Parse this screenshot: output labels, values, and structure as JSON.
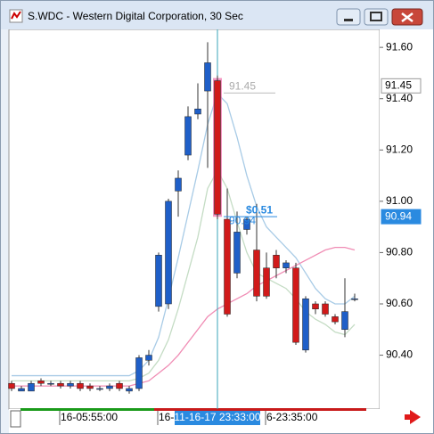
{
  "window": {
    "title": "S.WDC - Western Digital Corporation, 30 Sec"
  },
  "chart_data": {
    "type": "candlestick",
    "categories": [
      null,
      null,
      null,
      null,
      null,
      "16-05:55:00",
      null,
      null,
      null,
      null,
      null,
      null,
      null,
      null,
      null,
      "16-",
      null,
      null,
      null,
      null,
      null,
      "11-16-17 23:33:00",
      null,
      null,
      null,
      null,
      "6-23:35:00",
      null,
      null,
      null,
      null,
      null,
      null,
      null,
      null,
      null
    ],
    "selected_index": 21,
    "open": [
      90.29,
      90.26,
      90.26,
      90.3,
      90.29,
      90.29,
      90.28,
      90.29,
      90.28,
      90.27,
      90.27,
      90.29,
      90.26,
      90.27,
      90.38,
      90.59,
      90.6,
      91.04,
      91.18,
      91.34,
      91.43,
      91.47,
      90.93,
      90.72,
      90.89,
      90.81,
      90.74,
      90.79,
      90.74,
      90.74,
      90.42,
      90.6,
      90.6,
      90.55,
      90.5,
      90.62
    ],
    "high": [
      90.3,
      90.28,
      90.3,
      90.31,
      90.3,
      90.3,
      90.3,
      90.3,
      90.29,
      90.28,
      90.29,
      90.3,
      90.28,
      90.4,
      90.42,
      90.8,
      91.01,
      91.12,
      91.37,
      91.46,
      91.62,
      91.49,
      91.05,
      90.96,
      90.94,
      90.99,
      90.8,
      90.81,
      90.77,
      90.76,
      90.63,
      90.61,
      90.61,
      90.56,
      90.7,
      90.64
    ],
    "low": [
      90.26,
      90.26,
      90.26,
      90.28,
      90.28,
      90.27,
      90.27,
      90.26,
      90.26,
      90.26,
      90.26,
      90.26,
      90.25,
      90.26,
      90.36,
      90.57,
      90.58,
      90.94,
      91.16,
      91.32,
      91.13,
      90.93,
      90.55,
      90.7,
      90.87,
      90.61,
      90.62,
      90.7,
      90.72,
      90.44,
      90.41,
      90.56,
      90.55,
      90.52,
      90.47,
      90.61
    ],
    "close": [
      90.27,
      90.27,
      90.29,
      90.29,
      90.29,
      90.28,
      90.29,
      90.27,
      90.27,
      90.27,
      90.28,
      90.27,
      90.27,
      90.39,
      90.4,
      90.79,
      91.0,
      91.09,
      91.33,
      91.36,
      91.54,
      90.95,
      90.56,
      90.88,
      90.93,
      90.63,
      90.63,
      90.74,
      90.76,
      90.45,
      90.62,
      90.58,
      90.56,
      90.53,
      90.57,
      90.62
    ],
    "up_color": "#1f5fc8",
    "down_color": "#d11a1a",
    "series": [
      {
        "color": "#a8cbe6",
        "values": [
          90.32,
          90.32,
          90.32,
          90.32,
          90.32,
          90.32,
          90.32,
          90.32,
          90.32,
          90.32,
          90.32,
          90.32,
          90.32,
          90.34,
          90.38,
          90.47,
          90.62,
          90.78,
          90.95,
          91.12,
          91.3,
          91.42,
          91.38,
          91.25,
          91.1,
          90.98,
          90.9,
          90.86,
          90.82,
          90.78,
          90.72,
          90.66,
          90.62,
          90.6,
          90.6,
          90.63
        ]
      },
      {
        "color": "#c4dcc4",
        "values": [
          90.3,
          90.3,
          90.3,
          90.3,
          90.3,
          90.3,
          90.3,
          90.3,
          90.3,
          90.3,
          90.3,
          90.3,
          90.3,
          90.31,
          90.33,
          90.38,
          90.46,
          90.58,
          90.72,
          90.86,
          91.05,
          91.12,
          91.05,
          90.92,
          90.8,
          90.72,
          90.7,
          90.68,
          90.66,
          90.62,
          90.57,
          90.54,
          90.52,
          90.49,
          90.48,
          90.52
        ]
      },
      {
        "color": "#f08cb4",
        "values": [
          90.28,
          90.28,
          90.28,
          90.28,
          90.28,
          90.28,
          90.28,
          90.28,
          90.28,
          90.28,
          90.28,
          90.28,
          90.28,
          90.29,
          90.3,
          90.33,
          90.36,
          90.4,
          90.45,
          90.5,
          90.55,
          90.58,
          90.6,
          90.62,
          90.64,
          90.67,
          90.69,
          90.71,
          90.73,
          90.75,
          90.77,
          90.79,
          90.81,
          90.82,
          90.82,
          90.81
        ]
      }
    ],
    "ylim": [
      90.19,
      91.67
    ],
    "yticks": [
      {
        "value": 90.4,
        "label": "90.40"
      },
      {
        "value": 90.6,
        "label": "90.60"
      },
      {
        "value": 90.8,
        "label": "90.80"
      },
      {
        "value": 91.0,
        "label": "91.00"
      },
      {
        "value": 91.2,
        "label": "91.20"
      },
      {
        "value": 91.4,
        "label": "91.40"
      },
      {
        "value": 91.6,
        "label": "91.60"
      }
    ],
    "annotations": [
      {
        "value": 91.45,
        "label": "91.45"
      },
      {
        "value": 90.94,
        "label": "90.94"
      },
      {
        "value": 0.51,
        "label": "$0.51"
      }
    ],
    "price_tags": [
      {
        "value": 91.45,
        "label": "91.45"
      },
      {
        "value": 90.94,
        "label": "90.94"
      }
    ]
  }
}
